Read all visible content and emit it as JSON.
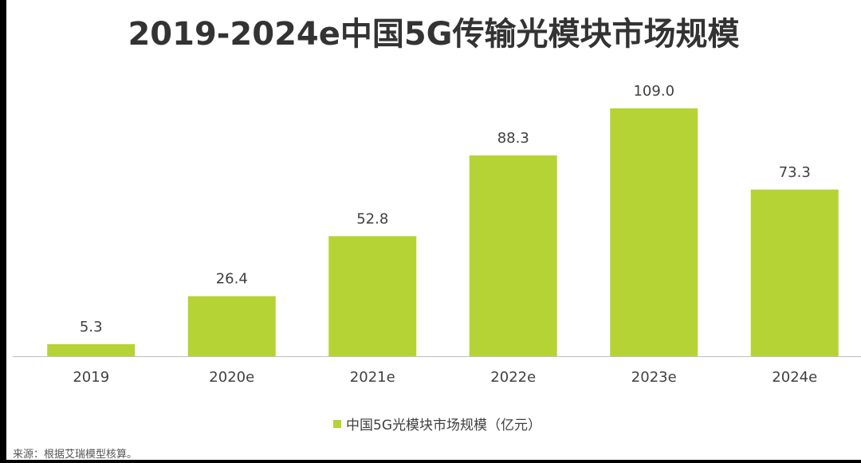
{
  "title": "2019-2024e中国5G传输光模块市场规模",
  "source": "来源：根据艾瑞模型核算。",
  "colors": {
    "bar": "#b5d334",
    "axis": "#bfbfbf",
    "label": "#404040"
  },
  "chart_data": {
    "type": "bar",
    "title": "2019-2024e中国5G传输光模块市场规模",
    "categories": [
      "2019",
      "2020e",
      "2021e",
      "2022e",
      "2023e",
      "2024e"
    ],
    "series": [
      {
        "name": "中国5G光模块市场规模（亿元）",
        "values": [
          5.3,
          26.4,
          52.8,
          88.3,
          109.0,
          73.3
        ]
      }
    ],
    "value_labels": [
      "5.3",
      "26.4",
      "52.8",
      "88.3",
      "109.0",
      "73.3"
    ],
    "xlabel": "",
    "ylabel": "",
    "ylim": [
      0,
      109.0
    ],
    "grid": false,
    "legend_position": "bottom"
  }
}
